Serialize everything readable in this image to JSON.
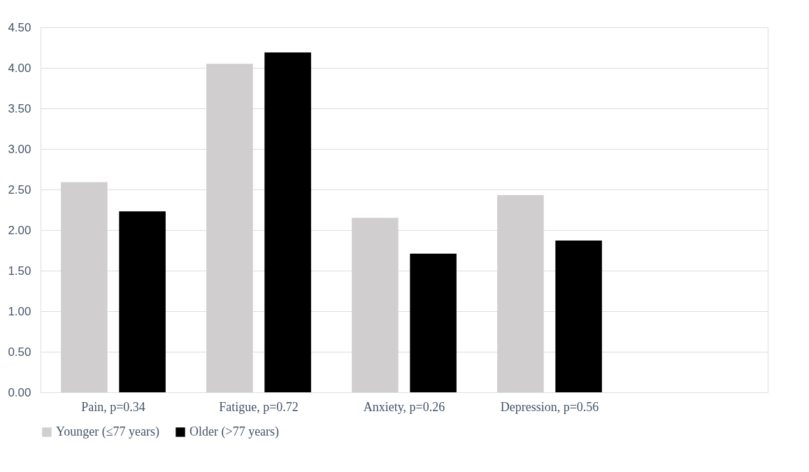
{
  "chart_data": {
    "type": "bar",
    "categories": [
      "Pain, p=0.34",
      "Fatigue, p=0.72",
      "Anxiety, p=0.26",
      "Depression, p=0.56",
      null
    ],
    "series": [
      {
        "name": "Younger (≤77 years)",
        "color": "#d0cece",
        "values": [
          2.59,
          4.05,
          2.15,
          2.43,
          null
        ]
      },
      {
        "name": "Older (>77 years)",
        "color": "#000000",
        "values": [
          2.23,
          4.19,
          1.71,
          1.87,
          null
        ]
      }
    ],
    "ylim": [
      0,
      4.5
    ],
    "yticks": [
      {
        "value": 0,
        "label": "0.00"
      },
      {
        "value": 0.5,
        "label": "0.50"
      },
      {
        "value": 1,
        "label": "1.00"
      },
      {
        "value": 1.5,
        "label": "1.50"
      },
      {
        "value": 2,
        "label": "2.00"
      },
      {
        "value": 2.5,
        "label": "2.50"
      },
      {
        "value": 3,
        "label": "3.00"
      },
      {
        "value": 3.5,
        "label": "3.50"
      },
      {
        "value": 4,
        "label": "4.00"
      },
      {
        "value": 4.5,
        "label": "4.50"
      }
    ],
    "grid": "y",
    "legend": "bottom"
  }
}
